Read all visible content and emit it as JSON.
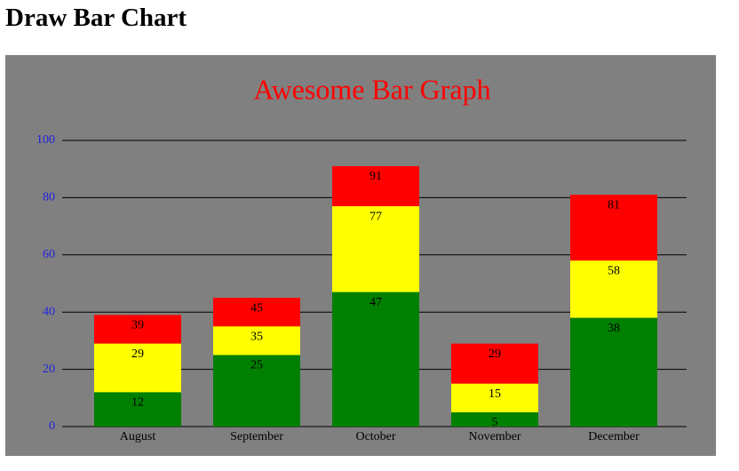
{
  "page_title": "Draw Bar Chart",
  "chart_data": {
    "type": "bar",
    "title": "Awesome Bar Graph",
    "categories": [
      "August",
      "September",
      "October",
      "November",
      "December"
    ],
    "series": [
      {
        "color": "#008000",
        "values": [
          12,
          25,
          47,
          5,
          38
        ]
      },
      {
        "color": "#ffff00",
        "values": [
          29,
          35,
          77,
          15,
          58
        ]
      },
      {
        "color": "#ff0000",
        "values": [
          39,
          45,
          91,
          29,
          81
        ]
      }
    ],
    "ylim": [
      0,
      100
    ],
    "yticks": [
      0,
      20,
      40,
      60,
      80,
      100
    ],
    "grid": true
  }
}
